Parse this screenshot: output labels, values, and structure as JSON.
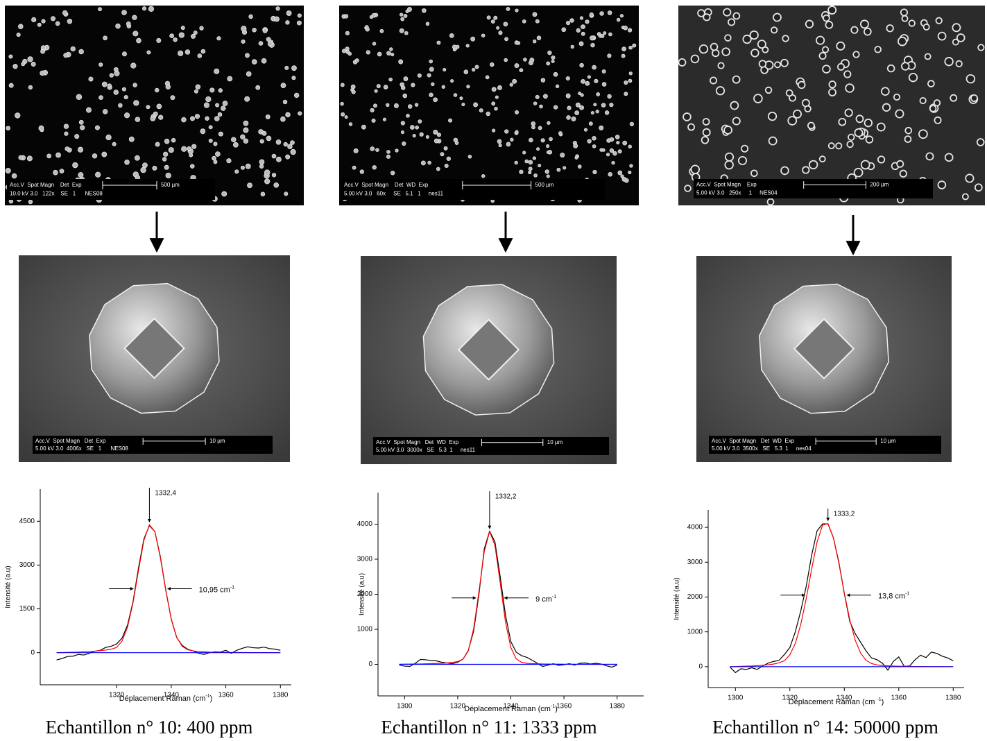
{
  "images": [
    {
      "info_line1": "Acc.V  Spot Magn    Det  Exp",
      "info_line2": "10.0 kV 3.0   122x    SE   1      NES08",
      "scale_label": "500 µm"
    },
    {
      "info_line1": "Acc.V  Spot Magn    Det  WD  Exp",
      "info_line2": "5.00 kV 3.0   60x     SE   5.1   1     nes11",
      "scale_label": "500 µm"
    },
    {
      "info_line1": "Acc.V  Spot Magn    Exp",
      "info_line2": "5.00 kV 3.0   250x     1     NES04",
      "scale_label": "200 µm"
    },
    {
      "info_line1": "Acc.V  Spot Magn   Det  Exp",
      "info_line2": "5.00 kV 3.0  4006x   SE   1      NES08",
      "scale_label": "10 µm"
    },
    {
      "info_line1": "Acc.V  Spot Magn   Det  WD  Exp",
      "info_line2": "5.00 kV 3.0  3000x   SE   5.3  1     nes11",
      "scale_label": "10 µm"
    },
    {
      "info_line1": "Acc.V  Spot Magn   Det  WD  Exp",
      "info_line2": "5.00 kV 3.0  3500x   SE   5.3  1     nes04",
      "scale_label": "10 µm"
    }
  ],
  "chart_data": [
    {
      "type": "line",
      "caption": "Echantillon n° 10: 400 ppm",
      "x_label": [
        "Déplacement Raman (cm",
        "-1",
        ")"
      ],
      "y_label": "Intensité (a.u)",
      "peak_label": "1332,4",
      "width_label": "10,95 cm",
      "width_exp": "-1",
      "xlim": [
        1292,
        1384
      ],
      "ylim": [
        -1100,
        5600
      ],
      "xticks": [
        1320,
        1340,
        1360,
        1380
      ],
      "yticks": [
        0,
        1500,
        3000,
        4500
      ],
      "x": [
        1298,
        1300,
        1302,
        1304,
        1306,
        1308,
        1310,
        1312,
        1314,
        1316,
        1318,
        1320,
        1322,
        1324,
        1326,
        1328,
        1330,
        1332,
        1334,
        1336,
        1338,
        1340,
        1342,
        1344,
        1346,
        1348,
        1350,
        1352,
        1354,
        1356,
        1358,
        1360,
        1362,
        1364,
        1366,
        1368,
        1370,
        1372,
        1374,
        1376,
        1378,
        1380
      ],
      "series": [
        {
          "color": "#000000",
          "values": [
            -250,
            -200,
            -130,
            -120,
            -60,
            -80,
            -20,
            50,
            80,
            180,
            220,
            300,
            500,
            950,
            1750,
            2900,
            3900,
            4350,
            4150,
            3300,
            2150,
            1150,
            520,
            250,
            120,
            60,
            -20,
            -60,
            0,
            30,
            20,
            80,
            -20,
            80,
            150,
            200,
            170,
            160,
            190,
            140,
            120,
            80
          ]
        },
        {
          "color": "#ff0000",
          "values": [
            0,
            5,
            10,
            15,
            20,
            30,
            40,
            50,
            70,
            90,
            120,
            180,
            400,
            880,
            1710,
            2810,
            3850,
            4380,
            4150,
            3260,
            2130,
            1160,
            530,
            220,
            100,
            60,
            40,
            30,
            20,
            15,
            10,
            8,
            6,
            5,
            4,
            3,
            2,
            2,
            1,
            1,
            1,
            0
          ]
        },
        {
          "color": "#0000ff",
          "x": [
            1298,
            1380
          ],
          "values": [
            0,
            0
          ]
        }
      ]
    },
    {
      "type": "line",
      "caption": "Echantillon n° 11: 1333 ppm",
      "x_label": [
        "Déplacement Raman (cm",
        "-1",
        ")"
      ],
      "y_label": "Intensité (a.u)",
      "peak_label": "1332,2",
      "width_label": "9 cm",
      "width_exp": "-1",
      "xlim": [
        1290,
        1390
      ],
      "ylim": [
        -900,
        4900
      ],
      "xticks": [
        1300,
        1320,
        1340,
        1360,
        1380
      ],
      "yticks": [
        0,
        1000,
        2000,
        3000,
        4000
      ],
      "x": [
        1298,
        1300,
        1302,
        1304,
        1306,
        1308,
        1310,
        1312,
        1314,
        1316,
        1318,
        1320,
        1322,
        1324,
        1326,
        1328,
        1330,
        1332,
        1334,
        1336,
        1338,
        1340,
        1342,
        1344,
        1346,
        1348,
        1350,
        1352,
        1354,
        1356,
        1358,
        1360,
        1362,
        1364,
        1366,
        1368,
        1370,
        1372,
        1374,
        1376,
        1378,
        1380
      ],
      "series": [
        {
          "color": "#000000",
          "values": [
            -20,
            -50,
            -60,
            30,
            140,
            130,
            110,
            100,
            60,
            40,
            20,
            60,
            150,
            400,
            950,
            2000,
            3300,
            3800,
            3500,
            2500,
            1400,
            650,
            350,
            250,
            200,
            120,
            30,
            -60,
            -20,
            20,
            -30,
            -10,
            20,
            -20,
            30,
            40,
            10,
            30,
            10,
            -40,
            -80,
            -20
          ]
        },
        {
          "color": "#ff0000",
          "values": [
            0,
            5,
            8,
            10,
            12,
            15,
            20,
            25,
            30,
            40,
            55,
            80,
            150,
            390,
            1020,
            2080,
            3220,
            3790,
            3400,
            2320,
            1200,
            480,
            160,
            60,
            30,
            20,
            15,
            10,
            8,
            6,
            5,
            4,
            3,
            3,
            2,
            2,
            2,
            1,
            1,
            1,
            1,
            0
          ]
        },
        {
          "color": "#0000ff",
          "x": [
            1298,
            1380
          ],
          "values": [
            0,
            0
          ]
        }
      ]
    },
    {
      "type": "line",
      "caption": "Echantillon n° 14: 50000 ppm",
      "x_label": [
        "Déplacement Raman (cm ",
        "-1",
        ")"
      ],
      "y_label": "Intensité (a.u)",
      "peak_label": "1333,2",
      "width_label": "13,8 cm",
      "width_exp": "-1",
      "xlim": [
        1290,
        1384
      ],
      "ylim": [
        -600,
        4500
      ],
      "xticks": [
        1300,
        1320,
        1340,
        1360,
        1380
      ],
      "yticks": [
        0,
        1000,
        2000,
        3000,
        4000
      ],
      "x": [
        1298,
        1300,
        1302,
        1304,
        1306,
        1308,
        1310,
        1312,
        1314,
        1316,
        1318,
        1320,
        1322,
        1324,
        1326,
        1328,
        1330,
        1332,
        1334,
        1336,
        1338,
        1340,
        1342,
        1344,
        1346,
        1348,
        1350,
        1352,
        1354,
        1356,
        1358,
        1360,
        1362,
        1364,
        1366,
        1368,
        1370,
        1372,
        1374,
        1376,
        1378,
        1380
      ],
      "series": [
        {
          "color": "#000000",
          "values": [
            -10,
            -170,
            -60,
            -80,
            -30,
            -80,
            20,
            100,
            150,
            180,
            350,
            550,
            1000,
            1600,
            2300,
            3200,
            3900,
            4100,
            4100,
            3700,
            3000,
            2100,
            1300,
            950,
            700,
            450,
            250,
            200,
            100,
            -100,
            150,
            280,
            10,
            20,
            200,
            330,
            260,
            420,
            380,
            300,
            250,
            170
          ]
        },
        {
          "color": "#ff0000",
          "values": [
            0,
            5,
            10,
            15,
            20,
            30,
            40,
            55,
            75,
            110,
            170,
            340,
            670,
            1210,
            1950,
            2800,
            3580,
            4060,
            4110,
            3700,
            2970,
            2120,
            1350,
            760,
            390,
            180,
            90,
            50,
            35,
            25,
            18,
            14,
            10,
            8,
            6,
            5,
            4,
            3,
            2,
            2,
            1,
            0
          ]
        },
        {
          "color": "#0000ff",
          "x": [
            1298,
            1380
          ],
          "values": [
            0,
            0
          ]
        }
      ]
    }
  ]
}
